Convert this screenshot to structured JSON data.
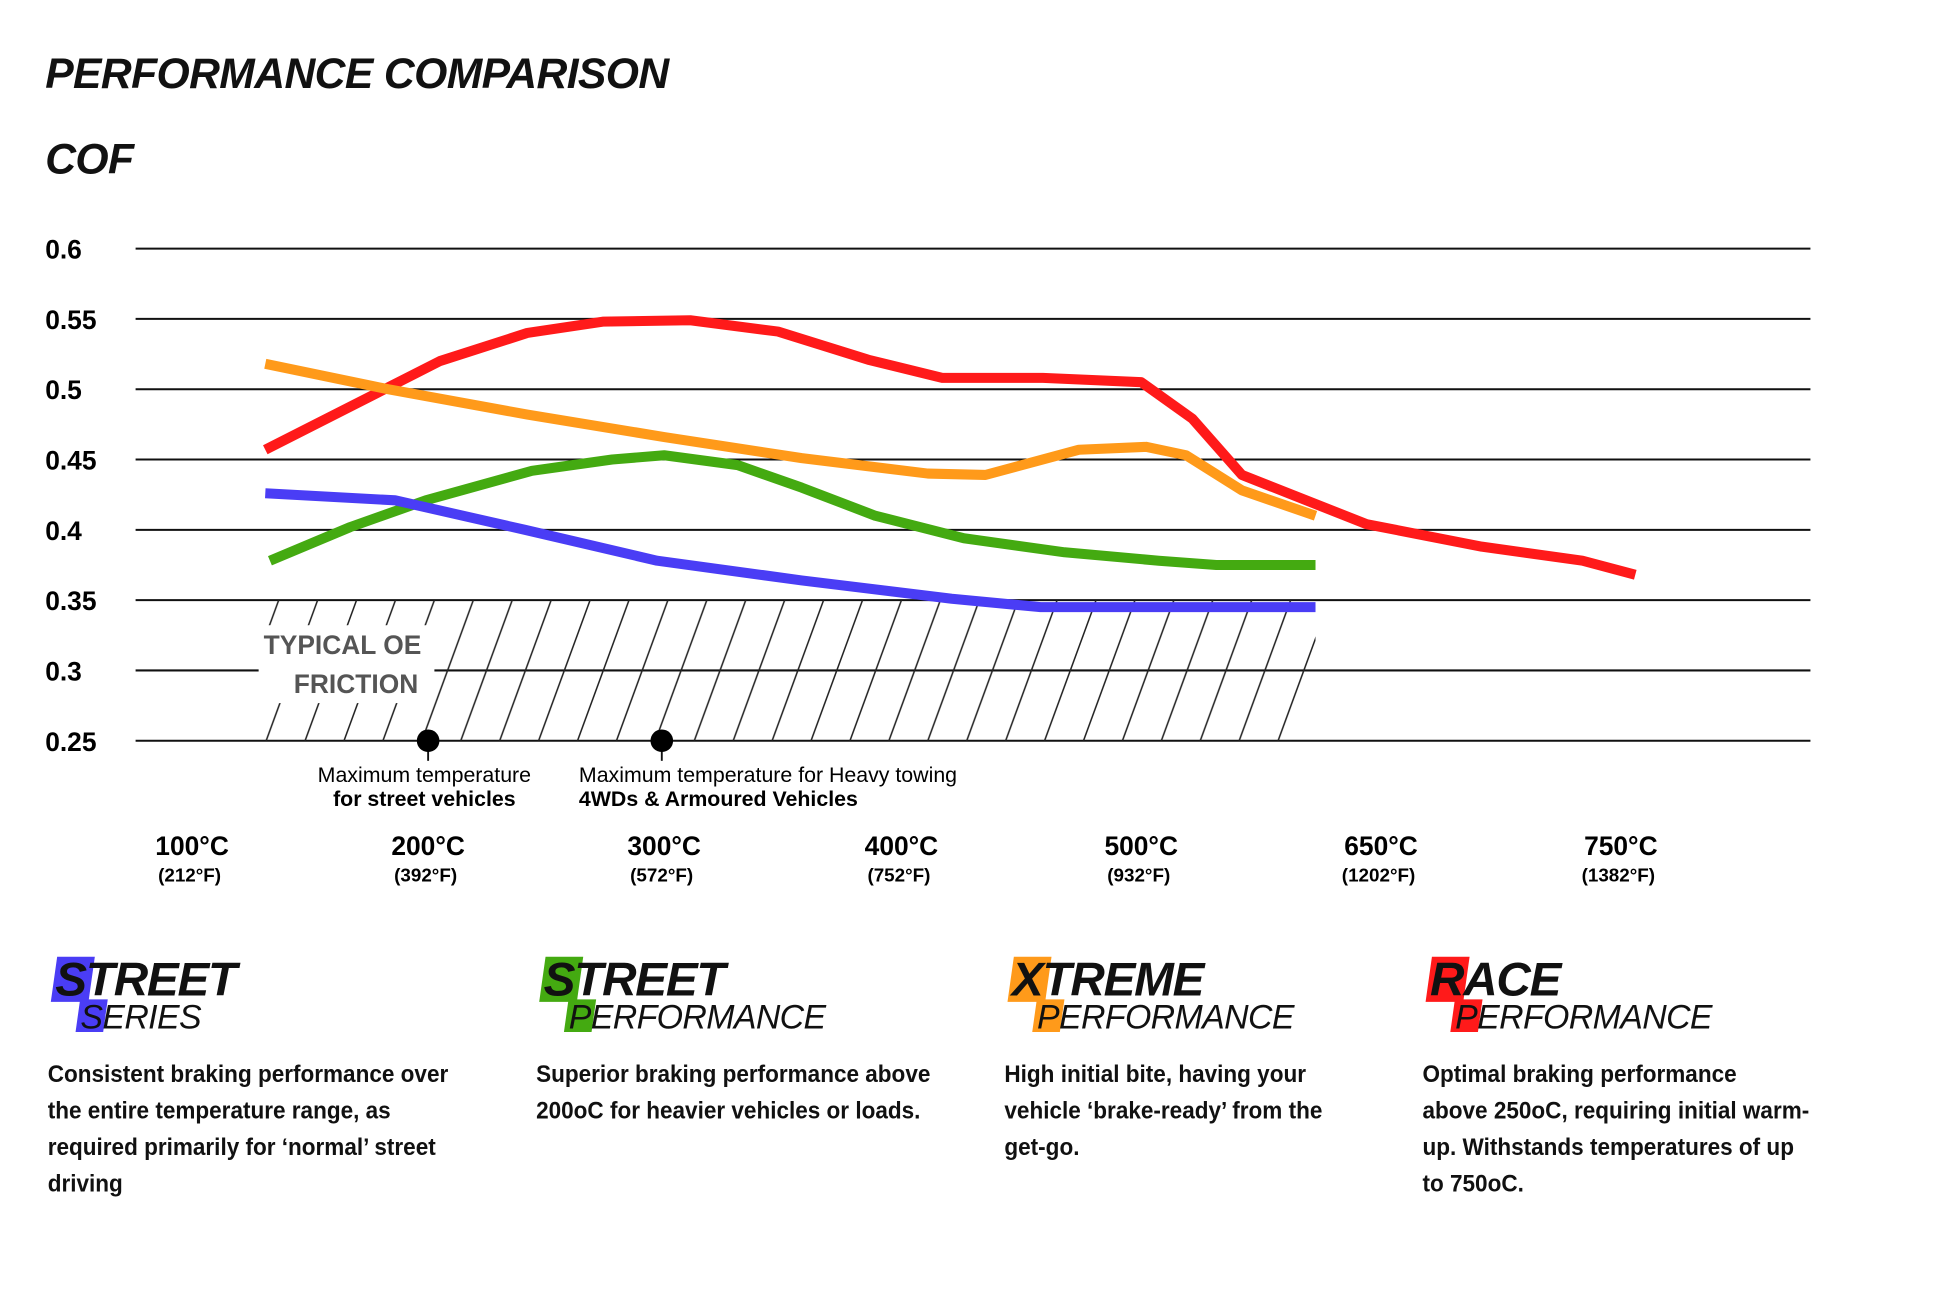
{
  "heading": "PERFORMANCE COMPARISON",
  "chart_data": {
    "type": "line",
    "title": "PERFORMANCE COMPARISON",
    "ylabel": "COF",
    "ylim": [
      0.25,
      0.6
    ],
    "yticks": [
      "0.6",
      "0.55",
      "0.5",
      "0.45",
      "0.4",
      "0.35",
      "0.3",
      "0.25"
    ],
    "ytick_values": [
      0.6,
      0.55,
      0.5,
      0.45,
      0.4,
      0.35,
      0.3,
      0.25
    ],
    "x_categories_c": [
      100,
      200,
      300,
      400,
      500,
      650,
      750
    ],
    "xticks": [
      {
        "c": "100°C",
        "f": "(212°F)"
      },
      {
        "c": "200°C",
        "f": "(392°F)"
      },
      {
        "c": "300°C",
        "f": "(572°F)"
      },
      {
        "c": "400°C",
        "f": "(752°F)"
      },
      {
        "c": "500°C",
        "f": "(932°F)"
      },
      {
        "c": "650°C",
        "f": "(1202°F)"
      },
      {
        "c": "750°C",
        "f": "(1382°F)"
      }
    ],
    "grid": true,
    "series": [
      {
        "color": "#ff1a1a",
        "x": [
          131,
          178,
          205,
          242,
          274,
          311,
          348,
          386,
          417,
          459,
          500,
          532,
          563,
          641,
          692,
          734,
          756
        ],
        "y": [
          0.457,
          0.497,
          0.52,
          0.54,
          0.548,
          0.549,
          0.541,
          0.521,
          0.508,
          0.508,
          0.505,
          0.479,
          0.439,
          0.404,
          0.388,
          0.378,
          0.368
        ]
      },
      {
        "color": "#ff9a1a",
        "x": [
          131,
          183,
          242,
          300,
          358,
          411,
          435,
          474,
          503,
          528,
          563,
          609
        ],
        "y": [
          0.518,
          0.5,
          0.482,
          0.466,
          0.451,
          0.44,
          0.439,
          0.457,
          0.459,
          0.453,
          0.428,
          0.41
        ]
      },
      {
        "color": "#44aa11",
        "x": [
          133,
          167,
          199,
          244,
          278,
          300,
          331,
          358,
          389,
          426,
          468,
          511,
          547,
          609
        ],
        "y": [
          0.378,
          0.402,
          0.421,
          0.442,
          0.45,
          0.453,
          0.446,
          0.43,
          0.41,
          0.394,
          0.384,
          0.378,
          0.375,
          0.375
        ]
      },
      {
        "color": "#4a3df5",
        "x": [
          131,
          186,
          241,
          297,
          358,
          421,
          458,
          609
        ],
        "y": [
          0.426,
          0.421,
          0.4,
          0.378,
          0.364,
          0.351,
          0.345,
          0.345
        ]
      }
    ],
    "region": {
      "label_line1": "TYPICAL OE",
      "label_line2": "FRICTION",
      "x": [
        131,
        609
      ],
      "y": [
        0.25,
        0.35
      ]
    },
    "annotations": [
      {
        "x": 200,
        "line1": "Maximum temperature",
        "line2": "for street vehicles"
      },
      {
        "x": 299,
        "line1": "Maximum temperature for Heavy towing",
        "line2": "4WDs & Armoured Vehicles"
      }
    ]
  },
  "products": [
    {
      "first": "S",
      "rest": "TREET",
      "sub_first": "S",
      "sub_rest": "ERIES",
      "color": "#4a3df5",
      "desc": [
        "Consistent braking performance over",
        "the entire temperature range, as",
        "required primarily for ‘normal’ street",
        "driving"
      ]
    },
    {
      "first": "S",
      "rest": "TREET",
      "sub_first": "P",
      "sub_rest": "ERFORMANCE",
      "color": "#44aa11",
      "desc": [
        "Superior braking performance above",
        "200oC for heavier vehicles or loads."
      ]
    },
    {
      "first": "X",
      "rest": "TREME",
      "sub_first": "P",
      "sub_rest": "ERFORMANCE",
      "color": "#ff9a1a",
      "desc": [
        "High initial bite, having your",
        "vehicle ‘brake-ready’ from the",
        "get-go."
      ]
    },
    {
      "first": "R",
      "rest": "ACE",
      "sub_first": "P",
      "sub_rest": "ERFORMANCE",
      "color": "#ff1a1a",
      "desc": [
        "Optimal braking performance",
        "above 250oC, requiring initial warm-",
        "up. Withstands temperatures of up",
        "to 750oC."
      ]
    }
  ]
}
